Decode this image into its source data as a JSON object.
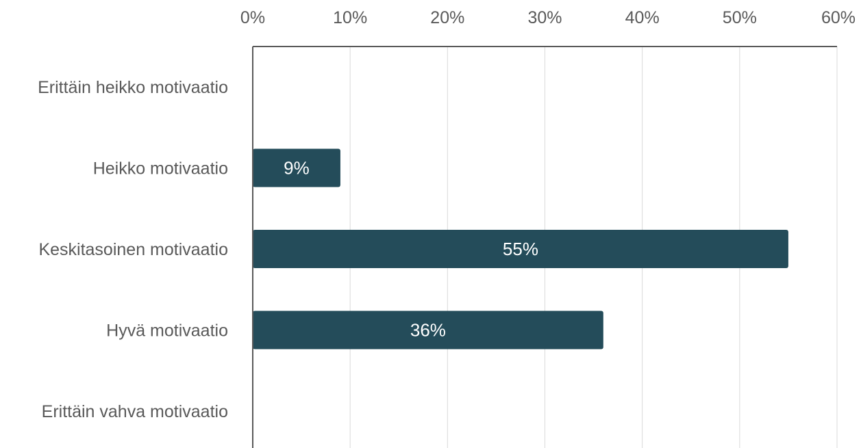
{
  "chart_data": {
    "type": "bar",
    "orientation": "horizontal",
    "categories": [
      "Erittäin heikko motivaatio",
      "Heikko motivaatio",
      "Keskitasoinen motivaatio",
      "Hyvä motivaatio",
      "Erittäin vahva motivaatio"
    ],
    "values": [
      0,
      9,
      55,
      36,
      0
    ],
    "data_labels": [
      "",
      "9%",
      "55%",
      "36%",
      ""
    ],
    "x_ticks": [
      "0%",
      "10%",
      "20%",
      "30%",
      "40%",
      "50%",
      "60%"
    ],
    "xlim": [
      0,
      60
    ],
    "x_axis_position": "top",
    "grid": true,
    "title": "",
    "xlabel": "",
    "ylabel": "",
    "bar_color": "#244c5a"
  }
}
